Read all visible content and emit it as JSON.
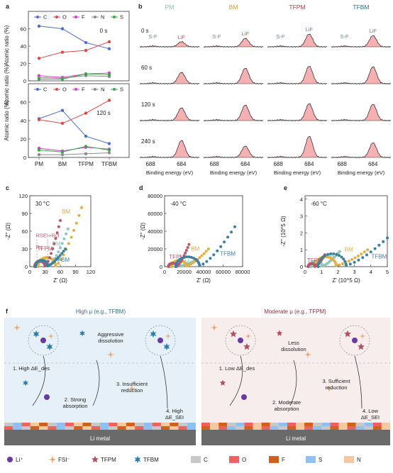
{
  "panels": {
    "a": {
      "label": "a",
      "categories": [
        "PM",
        "BM",
        "TFPM",
        "TFBM"
      ],
      "legend": [
        "C",
        "O",
        "F",
        "N",
        "S"
      ],
      "colors": {
        "C": "#4e6ed0",
        "O": "#e04848",
        "F": "#d63fd2",
        "N": "#8c8c8c",
        "S": "#3aa84a"
      },
      "ylabel": "Atomic ratio (%)",
      "top": {
        "time": "0 s",
        "ylim": [
          0,
          80
        ],
        "yticks": [
          "0",
          "20",
          "40",
          "60"
        ],
        "series": [
          {
            "name": "C",
            "values": [
              63,
              60,
              44,
              37
            ]
          },
          {
            "name": "O",
            "values": [
              26,
              33,
              35,
              45
            ]
          },
          {
            "name": "F",
            "values": [
              6,
              4,
              8,
              9
            ]
          },
          {
            "name": "N",
            "values": [
              4,
              3,
              6,
              5
            ]
          },
          {
            "name": "S",
            "values": [
              2,
              2,
              8,
              7
            ]
          }
        ]
      },
      "bottom": {
        "time": "120 s",
        "ylim": [
          0,
          80
        ],
        "yticks": [
          "0",
          "20",
          "40",
          "60"
        ],
        "series": [
          {
            "name": "C",
            "values": [
              42,
              51,
              23,
              15
            ]
          },
          {
            "name": "O",
            "values": [
              41,
              37,
              48,
              62
            ]
          },
          {
            "name": "F",
            "values": [
              10,
              7,
              11,
              9
            ]
          },
          {
            "name": "N",
            "values": [
              3,
              3,
              4,
              5
            ]
          },
          {
            "name": "S",
            "values": [
              8,
              6,
              12,
              8
            ]
          }
        ]
      }
    },
    "b": {
      "label": "b",
      "columns": [
        {
          "name": "PM",
          "color": "#7fbfb0"
        },
        {
          "name": "BM",
          "color": "#d6a520"
        },
        {
          "name": "TFPM",
          "color": "#b03a48"
        },
        {
          "name": "TFBM",
          "color": "#2f6f8f"
        }
      ],
      "times": [
        "0 s",
        "60 s",
        "120 s",
        "240 s"
      ],
      "peak_labels": {
        "sf": "S-F",
        "lif": "LiF"
      },
      "xticks": [
        "688",
        "684"
      ],
      "xlabel": "Binding energy (eV)",
      "intensity": [
        [
          0.18,
          0.3,
          0.45,
          0.4
        ],
        [
          0.4,
          0.55,
          0.62,
          0.6
        ],
        [
          0.45,
          0.55,
          0.6,
          0.58
        ],
        [
          0.6,
          0.4,
          0.75,
          0.52
        ]
      ]
    },
    "c": {
      "label": "c",
      "title": "30 °C",
      "xlabel": "Z' (Ω)",
      "ylabel": "-Z'' (Ω)",
      "xticks": [
        "0",
        "30",
        "60",
        "90",
        "120"
      ],
      "yticks": [
        "0",
        "30",
        "60",
        "90",
        "120"
      ],
      "annotations": {
        "rs": "Rs",
        "rsei": "RSEI+Rct"
      },
      "series": [
        {
          "name": "PM",
          "color": "#8cc7b8",
          "x_end": 75,
          "y_end": 64
        },
        {
          "name": "BM",
          "color": "#e0b040",
          "x_end": 102,
          "y_end": 100
        },
        {
          "name": "TFPM",
          "color": "#b8596a",
          "x_end": 60,
          "y_end": 78
        },
        {
          "name": "TFBM",
          "color": "#3d7f9f",
          "x_end": 70,
          "y_end": 30
        }
      ]
    },
    "d": {
      "label": "d",
      "title": "-40 °C",
      "xlabel": "Z' (Ω)",
      "ylabel": "-Z'' (Ω)",
      "xticks": [
        "0",
        "20000",
        "40000",
        "60000",
        "80000"
      ],
      "yticks": [
        "0",
        "20000",
        "40000",
        "60000",
        "80000"
      ],
      "series": [
        {
          "name": "PM",
          "color": "#8cc7b8",
          "x_end": 30000,
          "y_end": 6000
        },
        {
          "name": "BM",
          "color": "#e0b040",
          "x_end": 45000,
          "y_end": 20000
        },
        {
          "name": "TFPM",
          "color": "#b8596a",
          "x_end": 25000,
          "y_end": 25000
        },
        {
          "name": "TFBM",
          "color": "#3d7f9f",
          "x_end": 72000,
          "y_end": 45000
        }
      ]
    },
    "e": {
      "label": "e",
      "title": "-60 °C",
      "xlabel": "Z' (10^5 Ω)",
      "ylabel": "-Z'' (10^5 Ω)",
      "xticks": [
        "0",
        "1",
        "2",
        "3",
        "4",
        "5"
      ],
      "yticks": [
        "0",
        "1",
        "2",
        "3",
        "4"
      ],
      "series": [
        {
          "name": "PM",
          "color": "#8cc7b8",
          "x_end": 2.1,
          "y_end": 0.9
        },
        {
          "name": "BM",
          "color": "#e0b040",
          "x_end": 3.8,
          "y_end": 1.0
        },
        {
          "name": "TFPM",
          "color": "#b8596a",
          "x_end": 1.2,
          "y_end": 0.7
        },
        {
          "name": "TFBM",
          "color": "#3d7f9f",
          "x_end": 5.0,
          "y_end": 1.7
        }
      ]
    },
    "f": {
      "label": "f",
      "left_title": "High μ (e.g., TFBM)",
      "right_title": "Moderate μ (e.g., TFPM)",
      "left_notes": {
        "aggressive": "Aggressive\ndissolution",
        "step1": "1. High ΔE_des",
        "step2": "2. Strong\nabsorption",
        "step3": "3. Insufficient\nreduction",
        "step4": "4. High\nΔE_SEI"
      },
      "right_notes": {
        "less": "Less\ndissolution",
        "step1": "1. Low ΔE_des",
        "step2": "2. Moderate\nabsorption",
        "step3": "3. Sufficient\nreduction",
        "step4": "4. Low\nΔE_SEI"
      },
      "metal_label": "Li metal",
      "legend": [
        {
          "name": "Li⁺",
          "kind": "li",
          "color": "#6a3aa0"
        },
        {
          "name": "FSI⁻",
          "kind": "fsi",
          "color": "#f0a060"
        },
        {
          "name": "TFPM",
          "kind": "tfpm",
          "color": "#b05060"
        },
        {
          "name": "TFBM",
          "kind": "tfbm",
          "color": "#2f7fa8"
        },
        {
          "name": "C",
          "kind": "box",
          "color": "#c8c8c8"
        },
        {
          "name": "O",
          "kind": "box",
          "color": "#f06060"
        },
        {
          "name": "F",
          "kind": "box",
          "color": "#d0601a"
        },
        {
          "name": "S",
          "kind": "box",
          "color": "#90c0f0"
        },
        {
          "name": "N",
          "kind": "box",
          "color": "#f4c8a0"
        }
      ]
    }
  }
}
